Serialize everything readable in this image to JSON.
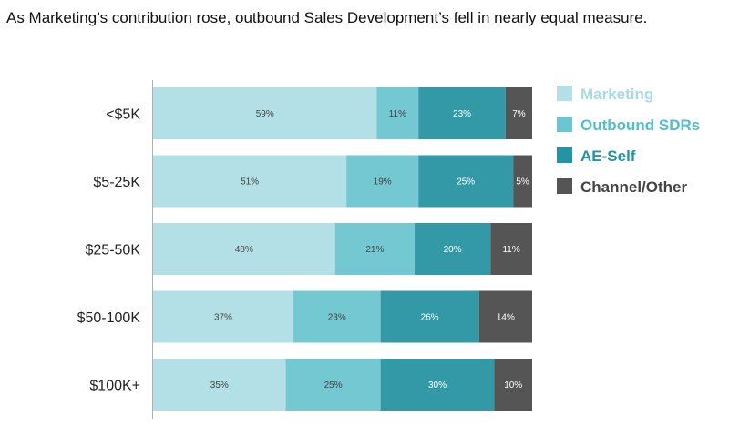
{
  "title": "As Marketing’s contribution rose, outbound Sales Development’s fell in nearly equal measure.",
  "chart_data": {
    "type": "bar",
    "orientation": "horizontal",
    "stacked": true,
    "percent": true,
    "xlim": [
      0,
      100
    ],
    "categories": [
      "<$5K",
      "$5-25K",
      "$25-50K",
      "$50-100K",
      "$100K+"
    ],
    "series": [
      {
        "name": "Marketing",
        "color": "#b2e0e6",
        "label_color": "#444444",
        "values": [
          59,
          51,
          48,
          37,
          35
        ]
      },
      {
        "name": "Outbound SDRs",
        "color": "#74c8d2",
        "label_color": "#444444",
        "values": [
          11,
          19,
          21,
          23,
          25
        ]
      },
      {
        "name": "AE-Self",
        "color": "#3399a6",
        "label_color": "#ffffff",
        "values": [
          23,
          25,
          20,
          26,
          30
        ]
      },
      {
        "name": "Channel/Other",
        "color": "#555555",
        "label_color": "#ffffff",
        "values": [
          7,
          5,
          11,
          14,
          10
        ]
      }
    ],
    "legend": {
      "position": "right",
      "entries": [
        {
          "label": "Marketing",
          "color": "#b2e0e6",
          "text_color": "#a6dce3"
        },
        {
          "label": "Outbound SDRs",
          "color": "#6cc6d1",
          "text_color": "#4fbfcc"
        },
        {
          "label": "AE-Self",
          "color": "#2394a3",
          "text_color": "#2394a3"
        },
        {
          "label": "Channel/Other",
          "color": "#555555",
          "text_color": "#444444"
        }
      ]
    }
  }
}
